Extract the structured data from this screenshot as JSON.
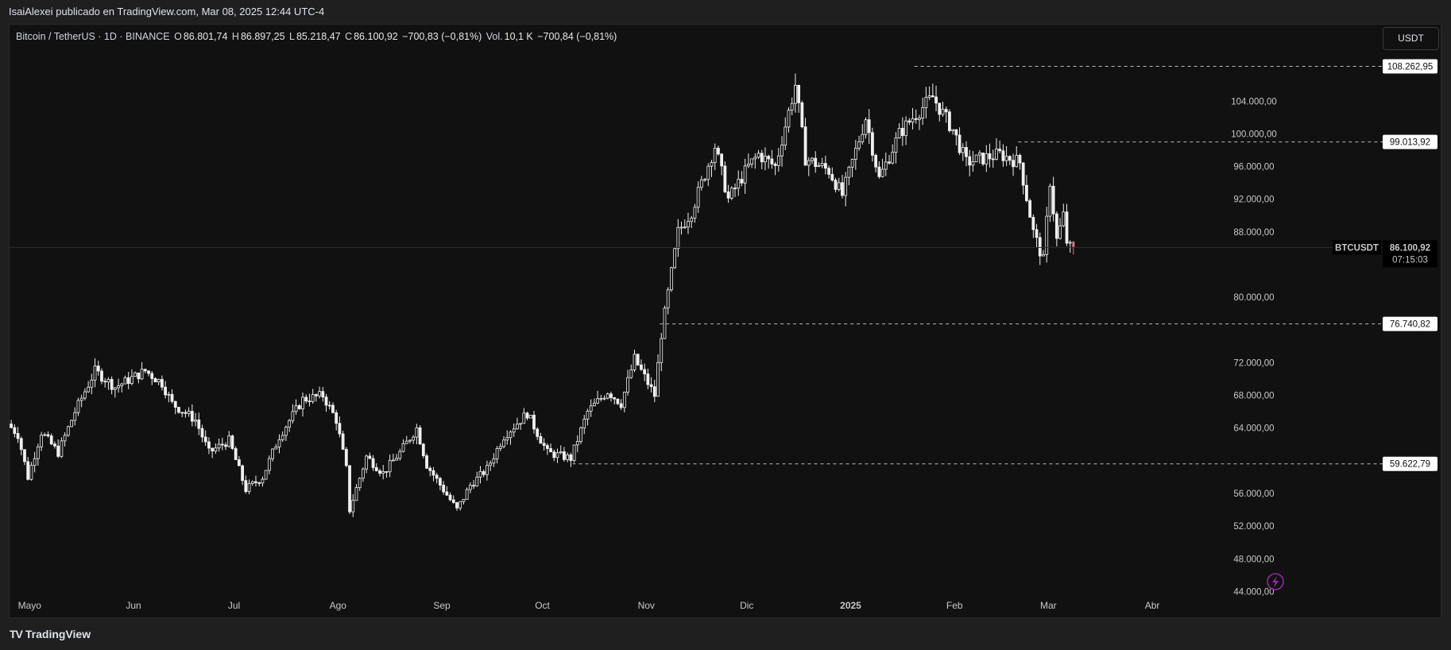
{
  "header": {
    "published": "IsaiAlexei publicado en TradingView.com, Mar 08, 2025 12:44 UTC-4"
  },
  "legend": {
    "symbol": "Bitcoin / TetherUS · 1D · BINANCE",
    "o_label": "O",
    "o_value": "86.801,74",
    "h_label": "H",
    "h_value": "86.897,25",
    "l_label": "L",
    "l_value": "85.218,47",
    "c_label": "C",
    "c_value": "86.100,92",
    "change": "−700,83 (−0,81%)",
    "vol_label": "Vol.",
    "vol_value": "10,1 K",
    "vol_change": "−700,84 (−0,81%)"
  },
  "currency_button": "USDT",
  "brand": {
    "name": "TradingView",
    "logo": "TV"
  },
  "colors": {
    "background": "#111111",
    "candle_up": "#ffffff",
    "candle_down": "#ffffff",
    "last_candle": "#e57373",
    "accent": "#9c27b0"
  },
  "chart_data": {
    "type": "candlestick",
    "symbol": "BTCUSDT",
    "timeframe": "1D",
    "ylim": [
      42000,
      112000
    ],
    "y_ticks": [
      {
        "value": 44000,
        "label": "44.000,00"
      },
      {
        "value": 48000,
        "label": "48.000,00"
      },
      {
        "value": 52000,
        "label": "52.000,00"
      },
      {
        "value": 56000,
        "label": "56.000,00"
      },
      {
        "value": 64000,
        "label": "64.000,00"
      },
      {
        "value": 68000,
        "label": "68.000,00"
      },
      {
        "value": 72000,
        "label": "72.000,00"
      },
      {
        "value": 80000,
        "label": "80.000,00"
      },
      {
        "value": 88000,
        "label": "88.000,00"
      },
      {
        "value": 92000,
        "label": "92.000,00"
      },
      {
        "value": 96000,
        "label": "96.000,00"
      },
      {
        "value": 100000,
        "label": "100.000,00"
      },
      {
        "value": 104000,
        "label": "104.000,00"
      }
    ],
    "x_labels": [
      {
        "label": "Mayo",
        "date": "2024-05-01"
      },
      {
        "label": "Jun",
        "date": "2024-06-01"
      },
      {
        "label": "Jul",
        "date": "2024-07-01"
      },
      {
        "label": "Ago",
        "date": "2024-08-01"
      },
      {
        "label": "Sep",
        "date": "2024-09-01"
      },
      {
        "label": "Oct",
        "date": "2024-10-01"
      },
      {
        "label": "Nov",
        "date": "2024-11-01"
      },
      {
        "label": "Dic",
        "date": "2024-12-01"
      },
      {
        "label": "2025",
        "date": "2025-01-01"
      },
      {
        "label": "Feb",
        "date": "2025-02-01"
      },
      {
        "label": "Mar",
        "date": "2025-03-01"
      },
      {
        "label": "Abr",
        "date": "2025-04-01"
      }
    ],
    "x_start": "2024-04-25",
    "x_end": "2025-04-10",
    "anchors": [
      {
        "date": "2024-04-25",
        "price": 64500
      },
      {
        "date": "2024-04-28",
        "price": 63200
      },
      {
        "date": "2024-05-01",
        "price": 58000
      },
      {
        "date": "2024-05-05",
        "price": 63500
      },
      {
        "date": "2024-05-10",
        "price": 61000
      },
      {
        "date": "2024-05-15",
        "price": 66000
      },
      {
        "date": "2024-05-21",
        "price": 71000
      },
      {
        "date": "2024-05-27",
        "price": 69000
      },
      {
        "date": "2024-06-05",
        "price": 71000
      },
      {
        "date": "2024-06-10",
        "price": 69500
      },
      {
        "date": "2024-06-13",
        "price": 67000
      },
      {
        "date": "2024-06-20",
        "price": 65000
      },
      {
        "date": "2024-06-24",
        "price": 61000
      },
      {
        "date": "2024-06-30",
        "price": 62500
      },
      {
        "date": "2024-07-05",
        "price": 56500
      },
      {
        "date": "2024-07-10",
        "price": 58000
      },
      {
        "date": "2024-07-15",
        "price": 63000
      },
      {
        "date": "2024-07-22",
        "price": 67500
      },
      {
        "date": "2024-07-28",
        "price": 68000
      },
      {
        "date": "2024-08-01",
        "price": 65000
      },
      {
        "date": "2024-08-04",
        "price": 59000
      },
      {
        "date": "2024-08-05",
        "price": 54000
      },
      {
        "date": "2024-08-10",
        "price": 60500
      },
      {
        "date": "2024-08-15",
        "price": 58500
      },
      {
        "date": "2024-08-20",
        "price": 61000
      },
      {
        "date": "2024-08-25",
        "price": 64000
      },
      {
        "date": "2024-08-28",
        "price": 59500
      },
      {
        "date": "2024-09-06",
        "price": 54000
      },
      {
        "date": "2024-09-10",
        "price": 57000
      },
      {
        "date": "2024-09-15",
        "price": 59000
      },
      {
        "date": "2024-09-20",
        "price": 63000
      },
      {
        "date": "2024-09-27",
        "price": 65800
      },
      {
        "date": "2024-10-03",
        "price": 61000
      },
      {
        "date": "2024-10-10",
        "price": 60300
      },
      {
        "date": "2024-10-15",
        "price": 66000
      },
      {
        "date": "2024-10-21",
        "price": 68500
      },
      {
        "date": "2024-10-25",
        "price": 67000
      },
      {
        "date": "2024-10-29",
        "price": 72500
      },
      {
        "date": "2024-11-04",
        "price": 68000
      },
      {
        "date": "2024-11-06",
        "price": 75500
      },
      {
        "date": "2024-11-11",
        "price": 88000
      },
      {
        "date": "2024-11-15",
        "price": 90500
      },
      {
        "date": "2024-11-22",
        "price": 98500
      },
      {
        "date": "2024-11-26",
        "price": 92000
      },
      {
        "date": "2024-12-02",
        "price": 96000
      },
      {
        "date": "2024-12-05",
        "price": 97500
      },
      {
        "date": "2024-12-10",
        "price": 96000
      },
      {
        "date": "2024-12-16",
        "price": 106000
      },
      {
        "date": "2024-12-19",
        "price": 97000
      },
      {
        "date": "2024-12-26",
        "price": 95500
      },
      {
        "date": "2024-12-30",
        "price": 92500
      },
      {
        "date": "2025-01-06",
        "price": 102000
      },
      {
        "date": "2025-01-10",
        "price": 94500
      },
      {
        "date": "2025-01-16",
        "price": 100000
      },
      {
        "date": "2025-01-20",
        "price": 102000
      },
      {
        "date": "2025-01-26",
        "price": 104500
      },
      {
        "date": "2025-02-01",
        "price": 100500
      },
      {
        "date": "2025-02-05",
        "price": 96500
      },
      {
        "date": "2025-02-15",
        "price": 97500
      },
      {
        "date": "2025-02-21",
        "price": 96500
      },
      {
        "date": "2025-02-25",
        "price": 88000
      },
      {
        "date": "2025-02-28",
        "price": 84500
      },
      {
        "date": "2025-03-02",
        "price": 94200
      },
      {
        "date": "2025-03-04",
        "price": 87000
      },
      {
        "date": "2025-03-06",
        "price": 90000
      },
      {
        "date": "2025-03-07",
        "price": 86800
      },
      {
        "date": "2025-03-08",
        "price": 86100
      }
    ],
    "last_candle": {
      "date": "2025-03-08",
      "open": 86801.74,
      "high": 86897.25,
      "low": 85218.47,
      "close": 86100.92
    },
    "levels": [
      {
        "value": 108262.95,
        "label": "108.262,95",
        "from": "2025-01-20"
      },
      {
        "value": 99013.92,
        "label": "99.013,92",
        "from": "2025-02-20"
      },
      {
        "value": 76740.82,
        "label": "76.740,82",
        "from": "2024-11-05"
      },
      {
        "value": 59622.79,
        "label": "59.622,79",
        "from": "2024-10-10"
      }
    ],
    "last_price": {
      "symbol": "BTCUSDT",
      "value": 86100.92,
      "label": "86.100,92",
      "countdown": "07:15:03"
    },
    "grid": false,
    "legend": "top-left"
  }
}
